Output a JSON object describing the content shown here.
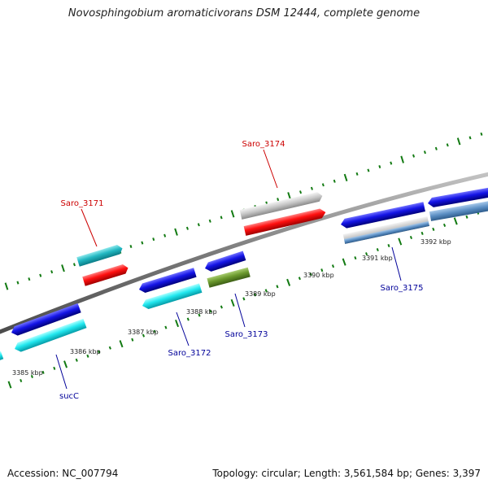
{
  "title": "Novosphingobium aromaticivorans DSM 12444, complete genome",
  "footer": {
    "accession": "Accession: NC_007794",
    "topology": "Topology: circular; Length: 3,561,584 bp; Genes: 3,397"
  },
  "colors": {
    "label_forward": "#cc0000",
    "label_reverse": "#000099",
    "tick": "#127a12",
    "backbone": "#8a8a8a",
    "leader": "#6d6d6d"
  },
  "kbp_ticks": [
    "3385 kbp",
    "3386 kbp",
    "3387 kbp",
    "3388 kbp",
    "3389 kbp",
    "3390 kbp",
    "3391 kbp",
    "3392 kbp"
  ],
  "gene_labels": [
    {
      "id": "Saro_3171",
      "text": "Saro_3171",
      "strand": "forward"
    },
    {
      "id": "Saro_3174",
      "text": "Saro_3174",
      "strand": "forward"
    },
    {
      "id": "sucC",
      "text": "sucC",
      "strand": "reverse"
    },
    {
      "id": "Saro_3172",
      "text": "Saro_3172",
      "strand": "reverse"
    },
    {
      "id": "Saro_3173",
      "text": "Saro_3173",
      "strand": "reverse"
    },
    {
      "id": "Saro_3175",
      "text": "Saro_3175",
      "strand": "reverse"
    }
  ]
}
